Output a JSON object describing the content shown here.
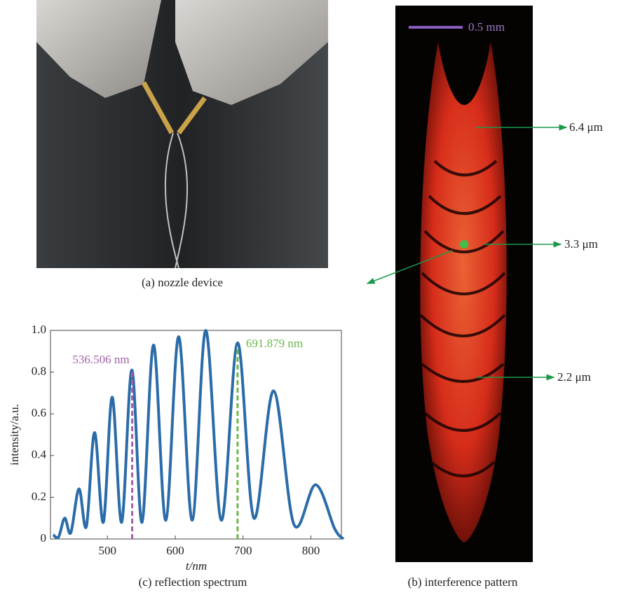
{
  "figure": {
    "caption_a": "(a) nozzle device",
    "caption_b": "(b) interference pattern",
    "caption_c": "(c) reflection spectrum",
    "scale_bar": "0.5 mm",
    "thickness_top": "6.4 μm",
    "thickness_mid": "3.3 μm",
    "thickness_bottom": "2.2 μm"
  },
  "chart_data": {
    "type": "line",
    "xlabel": "t/nm",
    "ylabel": "intensity/a.u.",
    "x": [
      420,
      428,
      437,
      446,
      458,
      469,
      481,
      494,
      507,
      521,
      536,
      551,
      568,
      586,
      605,
      625,
      645,
      668,
      692,
      716,
      745,
      775,
      807,
      835,
      848
    ],
    "values": [
      0.02,
      0.01,
      0.1,
      0.03,
      0.24,
      0.06,
      0.51,
      0.08,
      0.68,
      0.08,
      0.81,
      0.08,
      0.93,
      0.09,
      0.97,
      0.09,
      1.0,
      0.09,
      0.94,
      0.1,
      0.71,
      0.07,
      0.26,
      0.05,
      0.0
    ],
    "color": "#2b6ca8",
    "markers": [
      {
        "x": 536.506,
        "top": 0.81,
        "label": "536.506 nm",
        "color": "#a35fa6"
      },
      {
        "x": 691.879,
        "top": 0.92,
        "label": "691.879 nm",
        "color": "#6cb84a"
      }
    ],
    "xlim": [
      416,
      845
    ],
    "ylim": [
      0,
      1
    ],
    "xticks": [
      500,
      600,
      700,
      800
    ],
    "yticks": [
      0,
      0.2,
      0.4,
      0.6,
      0.8,
      {
        "value": 1,
        "label": "1.0"
      }
    ]
  }
}
